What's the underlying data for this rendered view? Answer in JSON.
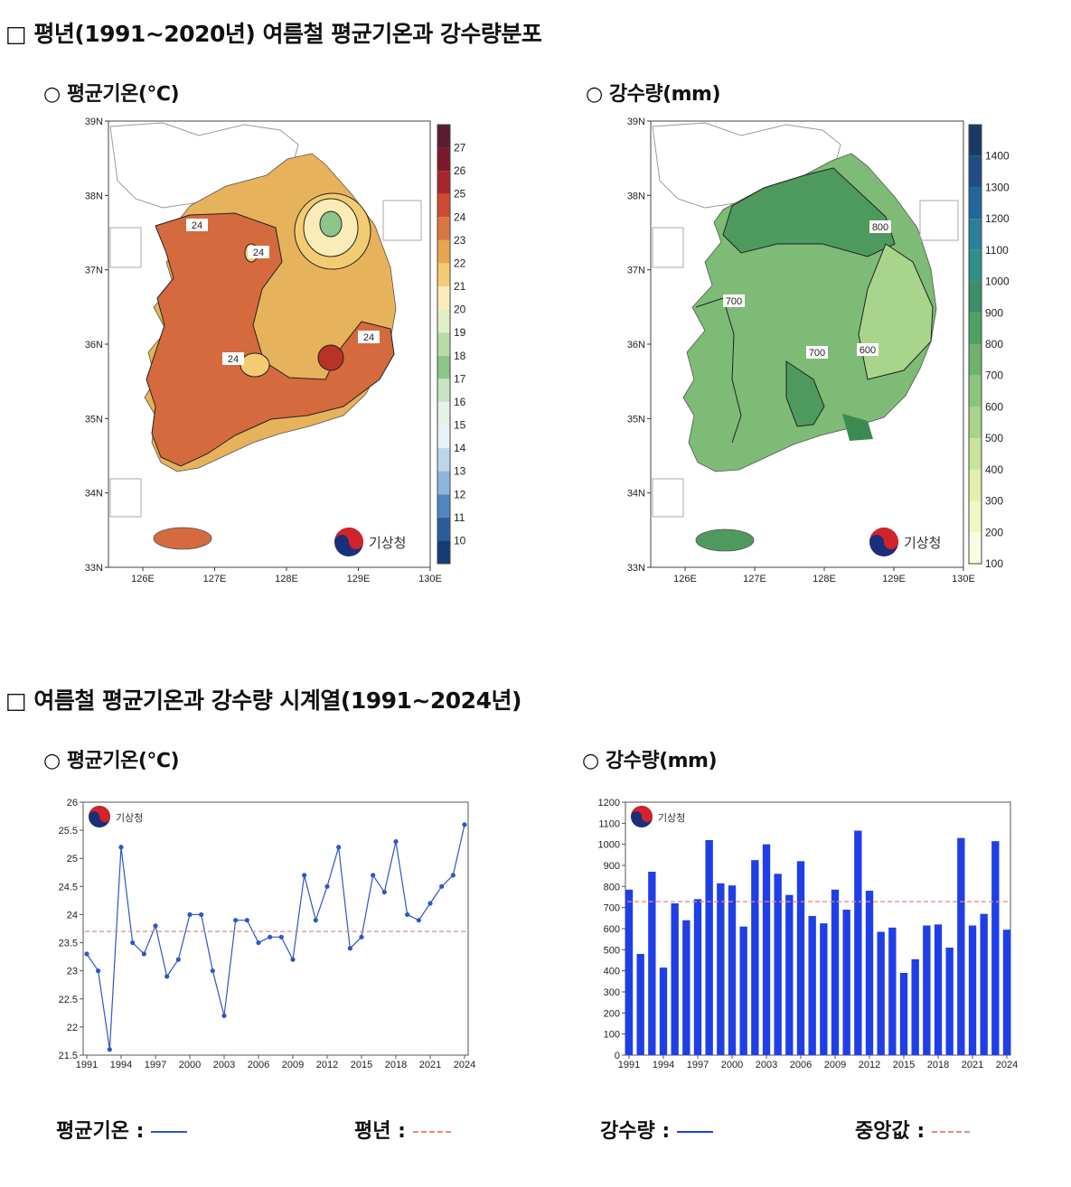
{
  "section1": {
    "title": "□ 평년(1991~2020년) 여름철 평균기온과 강수량분포",
    "temp_map_title": "○ 평균기온(℃)",
    "precip_map_title": "○ 강수량(mm)"
  },
  "section2": {
    "title": "□ 여름철 평균기온과 강수량 시계열(1991~2024년)",
    "temp_chart_title": "○ 평균기온(℃)",
    "precip_chart_title": "○ 강수량(mm)"
  },
  "kma_logo_text": "기상청",
  "map_axes": {
    "lat_labels": [
      "39N",
      "38N",
      "37N",
      "36N",
      "35N",
      "34N",
      "33N"
    ],
    "lon_labels": [
      "126E",
      "127E",
      "128E",
      "129E",
      "130E"
    ]
  },
  "temp_map": {
    "colorbar_labels": [
      "27",
      "26",
      "25",
      "24",
      "23",
      "22",
      "21",
      "20",
      "19",
      "18",
      "17",
      "16",
      "15",
      "14",
      "13",
      "12",
      "11",
      "10"
    ],
    "colorbar_colors": [
      "#5a1c2e",
      "#7a1a2a",
      "#a8262b",
      "#cf4a33",
      "#d9773f",
      "#e9a64f",
      "#f3cb72",
      "#f9ecb8",
      "#e2eec4",
      "#b9dba6",
      "#8cc58a",
      "#c9e4c2",
      "#e6f1e8",
      "#e9f1f9",
      "#bcd4ec",
      "#8db4dd",
      "#4f86c1",
      "#2a5d9e",
      "#163b73"
    ],
    "contour_labels": [
      "24",
      "24",
      "24",
      "24"
    ]
  },
  "precip_map": {
    "colorbar_labels": [
      "1400",
      "1300",
      "1200",
      "1100",
      "1000",
      "900",
      "800",
      "700",
      "600",
      "500",
      "400",
      "300",
      "200",
      "100"
    ],
    "colorbar_colors": [
      "#1a3a64",
      "#1d4f84",
      "#23679a",
      "#2b7f9a",
      "#2f8f86",
      "#3a8f68",
      "#4ea064",
      "#6db36f",
      "#8dc47b",
      "#aad38a",
      "#c8e39a",
      "#e3eeac",
      "#f2f5c6",
      "#fbfae2"
    ],
    "contour_labels": [
      "800",
      "700",
      "700",
      "600"
    ]
  },
  "legend": {
    "temp_label": "평균기온 :",
    "normal_label": "평년 :",
    "precip_label": "강수량 :",
    "median_label": "중앙값 :"
  },
  "chart_data": [
    {
      "type": "line",
      "title": "평균기온(℃)",
      "x": [
        1991,
        1992,
        1993,
        1994,
        1995,
        1996,
        1997,
        1998,
        1999,
        2000,
        2001,
        2002,
        2003,
        2004,
        2005,
        2006,
        2007,
        2008,
        2009,
        2010,
        2011,
        2012,
        2013,
        2014,
        2015,
        2016,
        2017,
        2018,
        2019,
        2020,
        2021,
        2022,
        2023,
        2024
      ],
      "series": [
        {
          "name": "평균기온",
          "color": "#2e56c9",
          "values": [
            23.3,
            23.0,
            21.6,
            25.2,
            23.5,
            23.3,
            23.8,
            22.9,
            23.2,
            24.0,
            24.0,
            23.0,
            22.2,
            23.9,
            23.9,
            23.5,
            23.6,
            23.6,
            23.2,
            24.7,
            23.9,
            24.5,
            25.2,
            23.4,
            23.6,
            24.7,
            24.4,
            25.3,
            24.0,
            23.9,
            24.2,
            24.5,
            24.7,
            25.6
          ]
        }
      ],
      "reference_line": {
        "name": "평년",
        "value": 23.7,
        "color": "#e08a8a"
      },
      "ylim": [
        21.5,
        26
      ],
      "yticks": [
        "21.5",
        "22",
        "22.5",
        "23",
        "23.5",
        "24",
        "24.5",
        "25",
        "25.5",
        "26"
      ],
      "xticks": [
        "1991",
        "1994",
        "1997",
        "2000",
        "2003",
        "2006",
        "2009",
        "2012",
        "2015",
        "2018",
        "2021",
        "2024"
      ]
    },
    {
      "type": "bar",
      "title": "강수량(mm)",
      "x": [
        1991,
        1992,
        1993,
        1994,
        1995,
        1996,
        1997,
        1998,
        1999,
        2000,
        2001,
        2002,
        2003,
        2004,
        2005,
        2006,
        2007,
        2008,
        2009,
        2010,
        2011,
        2012,
        2013,
        2014,
        2015,
        2016,
        2017,
        2018,
        2019,
        2020,
        2021,
        2022,
        2023,
        2024
      ],
      "series": [
        {
          "name": "강수량",
          "color": "#1f3fe6",
          "values": [
            785,
            480,
            870,
            415,
            720,
            640,
            740,
            1020,
            815,
            805,
            610,
            925,
            1000,
            860,
            760,
            920,
            660,
            625,
            785,
            690,
            1065,
            780,
            585,
            605,
            390,
            455,
            615,
            620,
            510,
            1030,
            615,
            670,
            1015,
            595
          ]
        }
      ],
      "reference_line": {
        "name": "중앙값",
        "value": 728,
        "color": "#e08a8a"
      },
      "ylim": [
        0,
        1200
      ],
      "yticks": [
        "0",
        "100",
        "200",
        "300",
        "400",
        "500",
        "600",
        "700",
        "800",
        "900",
        "1000",
        "1100",
        "1200"
      ],
      "xticks": [
        "1991",
        "1994",
        "1997",
        "2000",
        "2003",
        "2006",
        "2009",
        "2012",
        "2015",
        "2018",
        "2021",
        "2024"
      ]
    }
  ]
}
